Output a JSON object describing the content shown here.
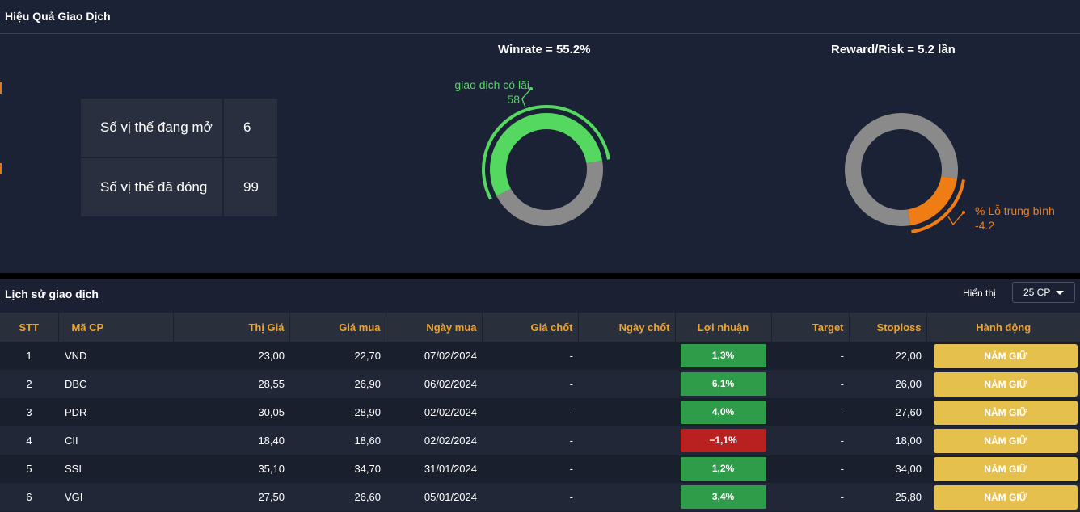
{
  "panel": {
    "title": "Hiệu Quả Giao Dịch"
  },
  "stats": [
    {
      "label": "Số vị thế đang mở",
      "value": "6"
    },
    {
      "label": "Số vị thế đã đóng",
      "value": "99"
    }
  ],
  "winrate": {
    "title": "Winrate = 55.2%",
    "callout_label": "Số giao dịch có lãi",
    "callout_value": "58",
    "fraction": 0.552,
    "color": "#54d860",
    "rest_color": "#8a8a8a"
  },
  "reward": {
    "title": "Reward/Risk = 5.2 lần",
    "callout_label": "% Lỗ trung bình",
    "callout_value": "-4.2",
    "fraction": 0.16,
    "color": "#f07d14",
    "rest_color": "#8a8a8a"
  },
  "history": {
    "title": "Lịch sử giao dịch",
    "show_label": "Hiển thị",
    "page_size": "25 CP",
    "columns": [
      "STT",
      "Mã CP",
      "Thị Giá",
      "Giá mua",
      "Ngày mua",
      "Giá chốt",
      "Ngày chốt",
      "Lợi nhuận",
      "Target",
      "Stoploss",
      "Hành động"
    ],
    "rows": [
      {
        "stt": "1",
        "ma": "VND",
        "thi_gia": "23,00",
        "gia_mua": "22,70",
        "ngay_mua": "07/02/2024",
        "gia_chot": "-",
        "ngay_chot": "",
        "loi_nhuan": "1,3%",
        "status": "pos",
        "target": "-",
        "stoploss": "22,00",
        "action": "NẮM GIỮ"
      },
      {
        "stt": "2",
        "ma": "DBC",
        "thi_gia": "28,55",
        "gia_mua": "26,90",
        "ngay_mua": "06/02/2024",
        "gia_chot": "-",
        "ngay_chot": "",
        "loi_nhuan": "6,1%",
        "status": "pos",
        "target": "-",
        "stoploss": "26,00",
        "action": "NẮM GIỮ"
      },
      {
        "stt": "3",
        "ma": "PDR",
        "thi_gia": "30,05",
        "gia_mua": "28,90",
        "ngay_mua": "02/02/2024",
        "gia_chot": "-",
        "ngay_chot": "",
        "loi_nhuan": "4,0%",
        "status": "pos",
        "target": "-",
        "stoploss": "27,60",
        "action": "NẮM GIỮ"
      },
      {
        "stt": "4",
        "ma": "CII",
        "thi_gia": "18,40",
        "gia_mua": "18,60",
        "ngay_mua": "02/02/2024",
        "gia_chot": "-",
        "ngay_chot": "",
        "loi_nhuan": "−1,1%",
        "status": "neg",
        "target": "-",
        "stoploss": "18,00",
        "action": "NẮM GIỮ"
      },
      {
        "stt": "5",
        "ma": "SSI",
        "thi_gia": "35,10",
        "gia_mua": "34,70",
        "ngay_mua": "31/01/2024",
        "gia_chot": "-",
        "ngay_chot": "",
        "loi_nhuan": "1,2%",
        "status": "pos",
        "target": "-",
        "stoploss": "34,00",
        "action": "NẮM GIỮ"
      },
      {
        "stt": "6",
        "ma": "VGI",
        "thi_gia": "27,50",
        "gia_mua": "26,60",
        "ngay_mua": "05/01/2024",
        "gia_chot": "-",
        "ngay_chot": "",
        "loi_nhuan": "3,4%",
        "status": "pos",
        "target": "-",
        "stoploss": "25,80",
        "action": "NẮM GIỮ"
      }
    ]
  }
}
